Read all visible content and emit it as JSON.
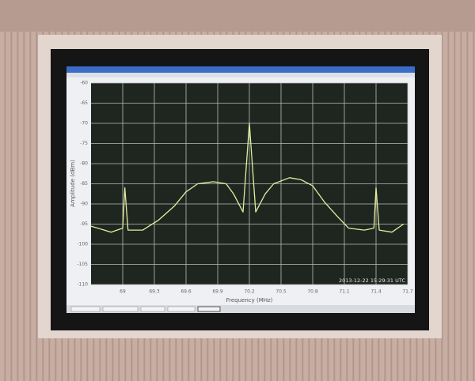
{
  "chart_data": {
    "type": "line",
    "x_label": "Frequency (MHz)",
    "y_label": "Amplitude (dBm)",
    "annotation": "2013-12-22 15:29:31 UTC",
    "x": [
      68.7,
      68.89,
      69.0,
      69.02,
      69.05,
      69.19,
      69.34,
      69.49,
      69.6,
      69.71,
      69.86,
      69.98,
      70.05,
      70.14,
      70.2,
      70.26,
      70.35,
      70.43,
      70.58,
      70.69,
      70.8,
      70.91,
      71.03,
      71.14,
      71.29,
      71.38,
      71.4,
      71.43,
      71.55,
      71.66
    ],
    "series": [
      {
        "color": "#e4ee9c",
        "values": [
          -95.5,
          -97,
          -96,
          -86,
          -96.5,
          -96.5,
          -94,
          -90.5,
          -87,
          -85,
          -84.5,
          -85,
          -87.5,
          -92,
          -70,
          -92,
          -87.5,
          -85,
          -83.5,
          -84,
          -85.5,
          -89.5,
          -93,
          -96,
          -96.5,
          -96,
          -86,
          -96.5,
          -97,
          -95
        ]
      }
    ],
    "xlim": [
      68.7,
      71.7
    ],
    "xticks": [
      69,
      69.3,
      69.6,
      69.9,
      70.2,
      70.5,
      70.8,
      71.1,
      71.4,
      71.7
    ],
    "ylim": [
      -110,
      -60
    ],
    "yticks": [
      -110,
      -105,
      -100,
      -95,
      -90,
      -85,
      -80,
      -75,
      -70,
      -65,
      -60
    ],
    "grid": true
  }
}
